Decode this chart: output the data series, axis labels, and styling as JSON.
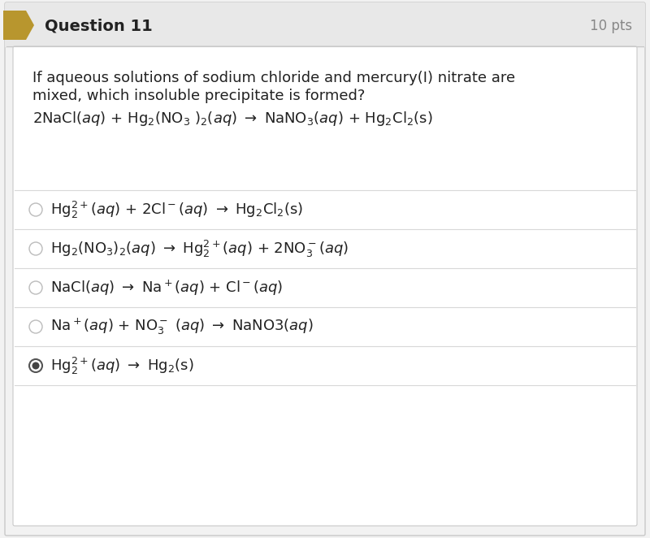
{
  "title": "Question 11",
  "pts": "10 pts",
  "bg_outer": "#f2f2f2",
  "bg_header": "#e8e8e8",
  "bg_inner": "#ffffff",
  "border_color": "#c8c8c8",
  "arrow_color": "#b8962e",
  "header_text_color": "#222222",
  "pts_text_color": "#888888",
  "body_text_color": "#222222",
  "question_text_line1": "If aqueous solutions of sodium chloride and mercury(I) nitrate are",
  "question_text_line2": "mixed, which insoluble precipitate is formed?",
  "font_size_header": 14,
  "font_size_pts": 12,
  "font_size_body": 13,
  "font_size_option": 13,
  "option_selected_index": 4
}
